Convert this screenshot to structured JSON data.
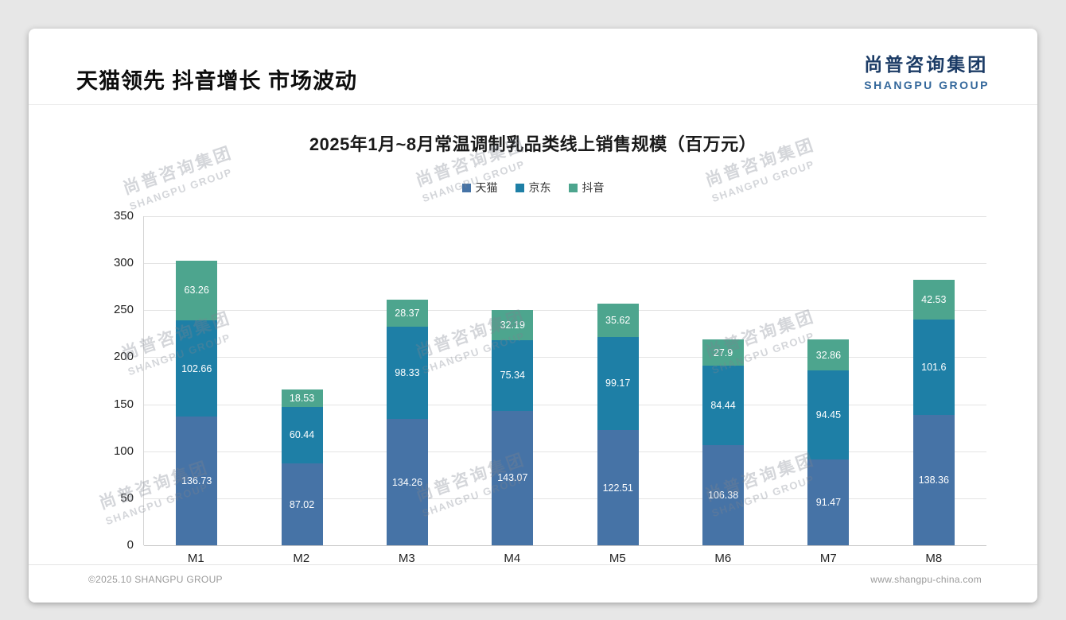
{
  "page": {
    "title": "天猫领先 抖音增长 市场波动",
    "logo": {
      "cn": "尚普咨询集团",
      "en": "SHANGPU GROUP"
    },
    "watermark": {
      "cn": "尚普咨询集团",
      "en": "SHANGPU GROUP"
    },
    "footer": {
      "left": "©2025.10 SHANGPU GROUP",
      "right": "www.shangpu-china.com"
    }
  },
  "chart_data": {
    "type": "bar",
    "stacked": true,
    "title": "2025年1月~8月常温调制乳品类线上销售规模（百万元）",
    "categories": [
      "M1",
      "M2",
      "M3",
      "M4",
      "M5",
      "M6",
      "M7",
      "M8"
    ],
    "series": [
      {
        "name": "天猫",
        "color": "#4673a6",
        "values": [
          136.73,
          87.02,
          134.26,
          143.07,
          122.51,
          106.38,
          91.47,
          138.36
        ]
      },
      {
        "name": "京东",
        "color": "#1e7fa6",
        "values": [
          102.66,
          60.44,
          98.33,
          75.34,
          99.17,
          84.44,
          94.45,
          101.6
        ]
      },
      {
        "name": "抖音",
        "color": "#4da58e",
        "values": [
          63.26,
          18.53,
          28.37,
          32.19,
          35.62,
          27.9,
          32.86,
          42.53
        ]
      }
    ],
    "ylim": [
      0,
      350
    ],
    "ytick_step": 50,
    "grid": true,
    "legend_position": "top",
    "value_labels": "inside-white"
  }
}
